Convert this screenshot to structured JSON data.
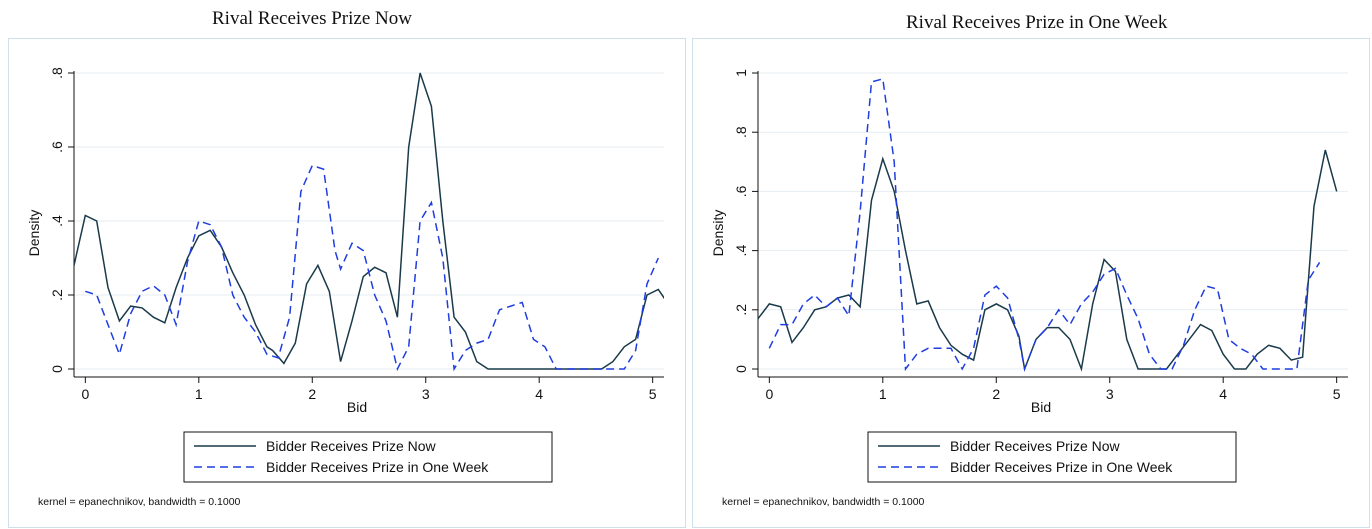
{
  "chart_data": [
    {
      "type": "line",
      "title": "Rival Receives Prize Now",
      "xlabel": "Bid",
      "ylabel": "Density",
      "xlim": [
        -0.1,
        5.1
      ],
      "ylim": [
        0,
        0.8
      ],
      "xticks": [
        "0",
        "1",
        "2",
        "3",
        "4",
        "5"
      ],
      "yticks": [
        "0",
        ".2",
        ".4",
        ".6",
        ".8"
      ],
      "grid": true,
      "legend_position": "bottom",
      "note": "kernel = epanechnikov, bandwidth = 0.1000",
      "series": [
        {
          "name": "Bidder Receives Prize Now",
          "color": "#1a3a4a",
          "style": "solid",
          "points": [
            [
              -0.1,
              0.28
            ],
            [
              0.0,
              0.415
            ],
            [
              0.1,
              0.4
            ],
            [
              0.2,
              0.22
            ],
            [
              0.3,
              0.13
            ],
            [
              0.4,
              0.17
            ],
            [
              0.5,
              0.165
            ],
            [
              0.6,
              0.14
            ],
            [
              0.7,
              0.125
            ],
            [
              0.8,
              0.22
            ],
            [
              0.9,
              0.3
            ],
            [
              1.0,
              0.36
            ],
            [
              1.1,
              0.375
            ],
            [
              1.2,
              0.33
            ],
            [
              1.3,
              0.26
            ],
            [
              1.4,
              0.2
            ],
            [
              1.5,
              0.12
            ],
            [
              1.6,
              0.06
            ],
            [
              1.65,
              0.05
            ],
            [
              1.75,
              0.015
            ],
            [
              1.85,
              0.07
            ],
            [
              1.95,
              0.23
            ],
            [
              2.05,
              0.28
            ],
            [
              2.15,
              0.21
            ],
            [
              2.25,
              0.02
            ],
            [
              2.35,
              0.13
            ],
            [
              2.45,
              0.25
            ],
            [
              2.55,
              0.275
            ],
            [
              2.65,
              0.26
            ],
            [
              2.75,
              0.14
            ],
            [
              2.85,
              0.6
            ],
            [
              2.95,
              0.8
            ],
            [
              3.05,
              0.71
            ],
            [
              3.15,
              0.4
            ],
            [
              3.25,
              0.14
            ],
            [
              3.35,
              0.1
            ],
            [
              3.45,
              0.02
            ],
            [
              3.55,
              0.0
            ],
            [
              3.7,
              0.0
            ],
            [
              4.0,
              0.0
            ],
            [
              4.3,
              0.0
            ],
            [
              4.55,
              0.0
            ],
            [
              4.65,
              0.02
            ],
            [
              4.75,
              0.06
            ],
            [
              4.85,
              0.08
            ],
            [
              4.95,
              0.2
            ],
            [
              5.05,
              0.215
            ],
            [
              5.15,
              0.17
            ]
          ]
        },
        {
          "name": "Bidder Receives Prize in One Week",
          "color": "#1f3de0",
          "style": "dashed",
          "points": [
            [
              0.0,
              0.21
            ],
            [
              0.1,
              0.2
            ],
            [
              0.2,
              0.12
            ],
            [
              0.3,
              0.04
            ],
            [
              0.4,
              0.15
            ],
            [
              0.5,
              0.21
            ],
            [
              0.6,
              0.225
            ],
            [
              0.7,
              0.2
            ],
            [
              0.8,
              0.12
            ],
            [
              0.9,
              0.29
            ],
            [
              1.0,
              0.4
            ],
            [
              1.1,
              0.39
            ],
            [
              1.2,
              0.33
            ],
            [
              1.3,
              0.2
            ],
            [
              1.4,
              0.14
            ],
            [
              1.5,
              0.1
            ],
            [
              1.6,
              0.04
            ],
            [
              1.7,
              0.03
            ],
            [
              1.8,
              0.14
            ],
            [
              1.9,
              0.48
            ],
            [
              2.0,
              0.55
            ],
            [
              2.1,
              0.54
            ],
            [
              2.2,
              0.32
            ],
            [
              2.25,
              0.27
            ],
            [
              2.35,
              0.34
            ],
            [
              2.45,
              0.32
            ],
            [
              2.55,
              0.2
            ],
            [
              2.65,
              0.13
            ],
            [
              2.75,
              0.0
            ],
            [
              2.85,
              0.06
            ],
            [
              2.95,
              0.4
            ],
            [
              3.05,
              0.45
            ],
            [
              3.15,
              0.3
            ],
            [
              3.25,
              0.0
            ],
            [
              3.35,
              0.05
            ],
            [
              3.45,
              0.07
            ],
            [
              3.55,
              0.08
            ],
            [
              3.65,
              0.16
            ],
            [
              3.75,
              0.17
            ],
            [
              3.85,
              0.18
            ],
            [
              3.95,
              0.08
            ],
            [
              4.05,
              0.06
            ],
            [
              4.15,
              0.0
            ],
            [
              4.5,
              0.0
            ],
            [
              4.75,
              0.0
            ],
            [
              4.85,
              0.05
            ],
            [
              4.95,
              0.23
            ],
            [
              5.05,
              0.3
            ]
          ]
        }
      ]
    },
    {
      "type": "line",
      "title": "Rival Receives Prize in One Week",
      "xlabel": "Bid",
      "ylabel": "Density",
      "xlim": [
        -0.1,
        5.1
      ],
      "ylim": [
        0,
        1
      ],
      "xticks": [
        "0",
        "1",
        "2",
        "3",
        "4",
        "5"
      ],
      "yticks": [
        "0",
        ".2",
        ".4",
        ".6",
        ".8",
        "1"
      ],
      "grid": true,
      "legend_position": "bottom",
      "note": "kernel = epanechnikov, bandwidth = 0.1000",
      "series": [
        {
          "name": "Bidder Receives Prize Now",
          "color": "#1a3a4a",
          "style": "solid",
          "points": [
            [
              -0.1,
              0.17
            ],
            [
              0.0,
              0.22
            ],
            [
              0.1,
              0.21
            ],
            [
              0.2,
              0.09
            ],
            [
              0.3,
              0.14
            ],
            [
              0.4,
              0.2
            ],
            [
              0.5,
              0.21
            ],
            [
              0.6,
              0.24
            ],
            [
              0.7,
              0.25
            ],
            [
              0.8,
              0.21
            ],
            [
              0.9,
              0.57
            ],
            [
              1.0,
              0.71
            ],
            [
              1.1,
              0.6
            ],
            [
              1.2,
              0.4
            ],
            [
              1.3,
              0.22
            ],
            [
              1.4,
              0.23
            ],
            [
              1.5,
              0.14
            ],
            [
              1.6,
              0.08
            ],
            [
              1.7,
              0.05
            ],
            [
              1.8,
              0.03
            ],
            [
              1.9,
              0.2
            ],
            [
              2.0,
              0.22
            ],
            [
              2.1,
              0.2
            ],
            [
              2.2,
              0.11
            ],
            [
              2.25,
              0.0
            ],
            [
              2.35,
              0.1
            ],
            [
              2.45,
              0.14
            ],
            [
              2.55,
              0.14
            ],
            [
              2.65,
              0.1
            ],
            [
              2.75,
              0.0
            ],
            [
              2.85,
              0.22
            ],
            [
              2.95,
              0.37
            ],
            [
              3.05,
              0.33
            ],
            [
              3.15,
              0.1
            ],
            [
              3.25,
              0.0
            ],
            [
              3.35,
              0.0
            ],
            [
              3.5,
              0.0
            ],
            [
              3.6,
              0.05
            ],
            [
              3.7,
              0.1
            ],
            [
              3.8,
              0.15
            ],
            [
              3.9,
              0.13
            ],
            [
              4.0,
              0.05
            ],
            [
              4.1,
              0.0
            ],
            [
              4.2,
              0.0
            ],
            [
              4.3,
              0.05
            ],
            [
              4.4,
              0.08
            ],
            [
              4.5,
              0.07
            ],
            [
              4.6,
              0.03
            ],
            [
              4.7,
              0.04
            ],
            [
              4.8,
              0.55
            ],
            [
              4.9,
              0.74
            ],
            [
              5.0,
              0.6
            ]
          ]
        },
        {
          "name": "Bidder Receives Prize in One Week",
          "color": "#1f3de0",
          "style": "dashed",
          "points": [
            [
              0.0,
              0.07
            ],
            [
              0.1,
              0.15
            ],
            [
              0.2,
              0.15
            ],
            [
              0.3,
              0.22
            ],
            [
              0.4,
              0.25
            ],
            [
              0.5,
              0.21
            ],
            [
              0.6,
              0.24
            ],
            [
              0.7,
              0.18
            ],
            [
              0.8,
              0.53
            ],
            [
              0.9,
              0.97
            ],
            [
              1.0,
              0.98
            ],
            [
              1.1,
              0.7
            ],
            [
              1.2,
              0.0
            ],
            [
              1.3,
              0.05
            ],
            [
              1.4,
              0.07
            ],
            [
              1.5,
              0.07
            ],
            [
              1.6,
              0.07
            ],
            [
              1.7,
              0.0
            ],
            [
              1.8,
              0.07
            ],
            [
              1.9,
              0.25
            ],
            [
              2.0,
              0.28
            ],
            [
              2.1,
              0.24
            ],
            [
              2.2,
              0.1
            ],
            [
              2.25,
              0.0
            ],
            [
              2.35,
              0.1
            ],
            [
              2.45,
              0.14
            ],
            [
              2.55,
              0.2
            ],
            [
              2.65,
              0.15
            ],
            [
              2.75,
              0.22
            ],
            [
              2.85,
              0.26
            ],
            [
              2.95,
              0.32
            ],
            [
              3.05,
              0.34
            ],
            [
              3.15,
              0.25
            ],
            [
              3.25,
              0.17
            ],
            [
              3.35,
              0.05
            ],
            [
              3.45,
              0.0
            ],
            [
              3.55,
              0.0
            ],
            [
              3.65,
              0.08
            ],
            [
              3.75,
              0.2
            ],
            [
              3.85,
              0.28
            ],
            [
              3.95,
              0.27
            ],
            [
              4.05,
              0.1
            ],
            [
              4.15,
              0.07
            ],
            [
              4.25,
              0.05
            ],
            [
              4.35,
              0.0
            ],
            [
              4.5,
              0.0
            ],
            [
              4.65,
              0.0
            ],
            [
              4.75,
              0.3
            ],
            [
              4.85,
              0.36
            ]
          ]
        }
      ]
    }
  ]
}
